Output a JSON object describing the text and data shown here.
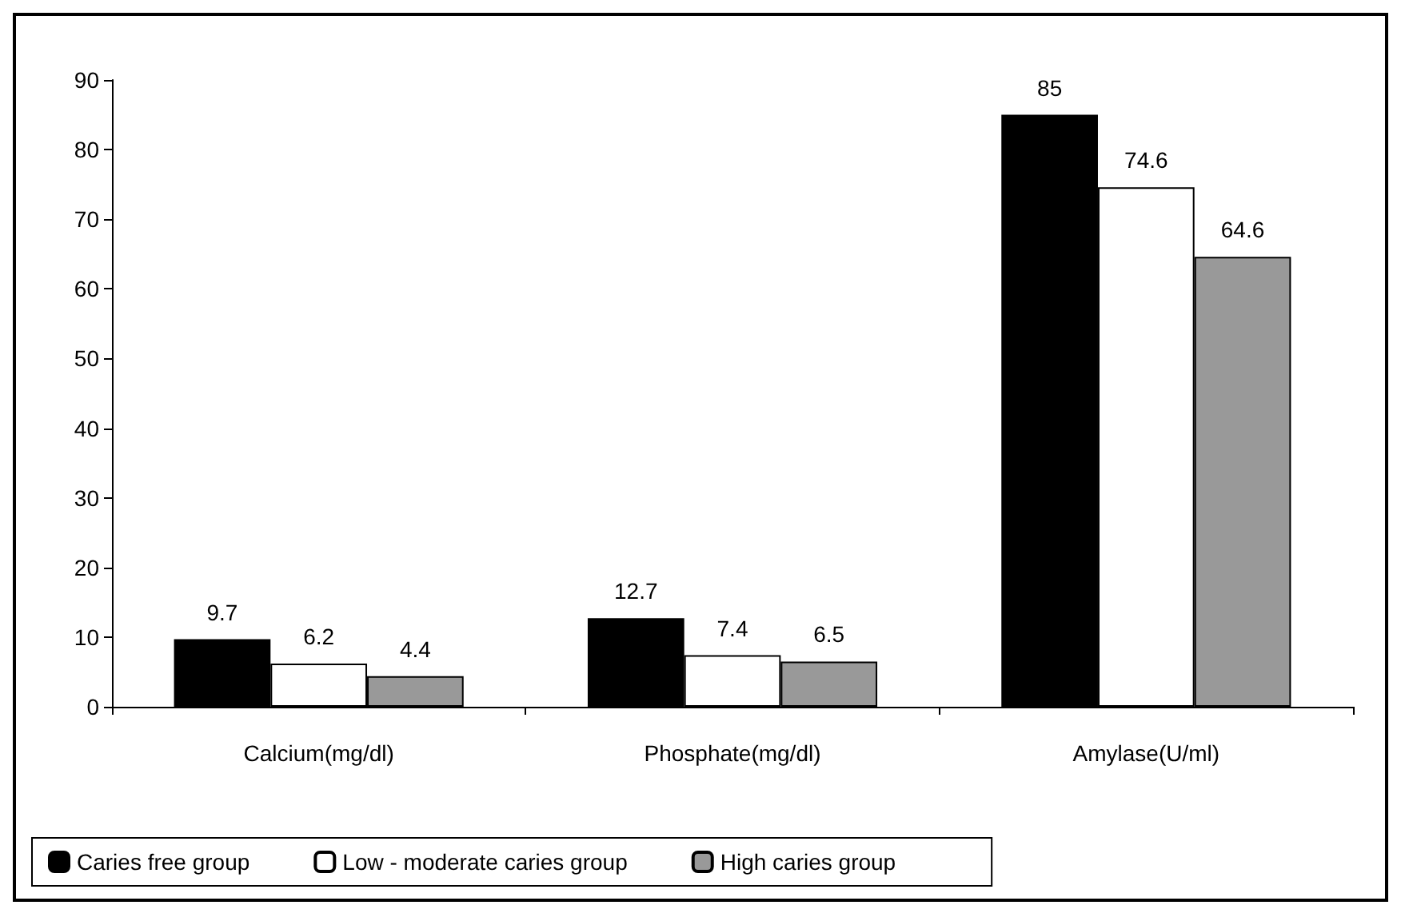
{
  "chart_data": {
    "type": "bar",
    "categories": [
      "Calcium(mg/dl)",
      "Phosphate(mg/dl)",
      "Amylase(U/ml)"
    ],
    "series": [
      {
        "name": "Caries free group",
        "color": "#000000",
        "values": [
          9.7,
          12.7,
          85
        ]
      },
      {
        "name": "Low - moderate caries group",
        "color": "#ffffff",
        "values": [
          6.2,
          7.4,
          74.6
        ]
      },
      {
        "name": "High caries group",
        "color": "#999999",
        "values": [
          4.4,
          6.5,
          64.6
        ]
      }
    ],
    "ylim": [
      0,
      90
    ],
    "yticks": [
      0,
      10,
      20,
      30,
      40,
      50,
      60,
      70,
      80,
      90
    ],
    "grid": false,
    "legend": "bottom",
    "data_labels": true
  }
}
